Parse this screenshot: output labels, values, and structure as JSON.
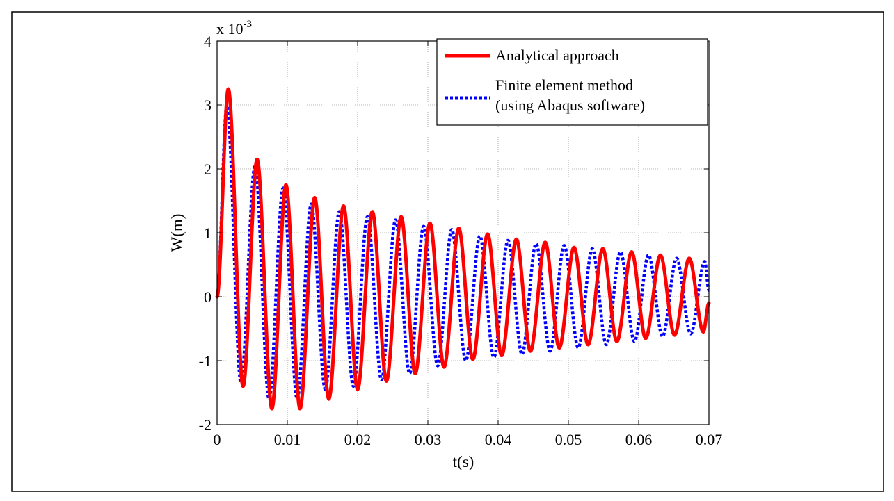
{
  "chart_data": {
    "type": "line",
    "title": "",
    "xlabel": "t(s)",
    "ylabel": "W(m)",
    "y_multiplier_label": "x 10",
    "y_multiplier_exponent": "-3",
    "xlim": [
      0,
      0.07
    ],
    "ylim": [
      -2,
      4
    ],
    "xticks": [
      0,
      0.01,
      0.02,
      0.03,
      0.04,
      0.05,
      0.06,
      0.07
    ],
    "xtick_labels": [
      "0",
      "0.01",
      "0.02",
      "0.03",
      "0.04",
      "0.05",
      "0.06",
      "0.07"
    ],
    "yticks": [
      -2,
      -1,
      0,
      1,
      2,
      3,
      4
    ],
    "ytick_labels": [
      "-2",
      "-1",
      "0",
      "1",
      "2",
      "3",
      "4"
    ],
    "grid": true,
    "legend_position": "top-right",
    "series": [
      {
        "name": "Analytical approach",
        "color": "#ff0000",
        "style": "solid",
        "x": [
          0,
          0.0016,
          0.0037,
          0.0057,
          0.0078,
          0.0098,
          0.0118,
          0.0139,
          0.0159,
          0.018,
          0.02,
          0.0221,
          0.0241,
          0.0262,
          0.0282,
          0.0303,
          0.0323,
          0.0344,
          0.0364,
          0.0385,
          0.0405,
          0.0426,
          0.0446,
          0.0467,
          0.0487,
          0.0508,
          0.0528,
          0.0549,
          0.0569,
          0.059,
          0.061,
          0.0631,
          0.0651,
          0.0672,
          0.0692,
          0.07
        ],
        "values": [
          0,
          3.25,
          -1.4,
          2.15,
          -1.75,
          1.75,
          -1.75,
          1.55,
          -1.6,
          1.42,
          -1.45,
          1.33,
          -1.32,
          1.25,
          -1.2,
          1.15,
          -1.1,
          1.07,
          -0.98,
          0.98,
          -0.92,
          0.9,
          -0.85,
          0.85,
          -0.8,
          0.77,
          -0.75,
          0.75,
          -0.7,
          0.7,
          -0.65,
          0.65,
          -0.6,
          0.6,
          -0.55,
          -0.1
        ]
      },
      {
        "name": "Finite element method\n(using Abaqus software)",
        "color": "#0000ff",
        "style": "dotted",
        "x": [
          0,
          0.0014,
          0.0034,
          0.0054,
          0.0074,
          0.0094,
          0.0114,
          0.0134,
          0.0154,
          0.0174,
          0.0194,
          0.0214,
          0.0234,
          0.0254,
          0.0274,
          0.0294,
          0.0314,
          0.0334,
          0.0354,
          0.0374,
          0.0394,
          0.0414,
          0.0434,
          0.0454,
          0.0474,
          0.0494,
          0.0514,
          0.0534,
          0.0554,
          0.0574,
          0.0594,
          0.0614,
          0.0634,
          0.0654,
          0.0674,
          0.0694,
          0.07
        ],
        "values": [
          0,
          3.0,
          -1.35,
          2.05,
          -1.6,
          1.7,
          -1.6,
          1.45,
          -1.45,
          1.33,
          -1.4,
          1.25,
          -1.3,
          1.2,
          -1.2,
          1.1,
          -1.08,
          1.05,
          -1.0,
          0.95,
          -0.95,
          0.88,
          -0.9,
          0.83,
          -0.85,
          0.8,
          -0.8,
          0.75,
          -0.75,
          0.7,
          -0.7,
          0.65,
          -0.62,
          0.6,
          -0.58,
          0.55,
          0.1
        ]
      }
    ]
  }
}
